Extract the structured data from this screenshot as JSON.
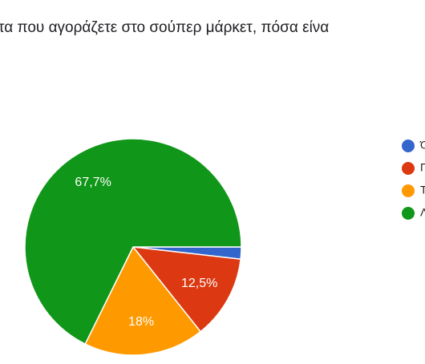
{
  "chart_data": {
    "type": "pie",
    "title": "τα που αγοράζετε στο σούπερ μάρκετ, πόσα είνα",
    "categories": [
      "Ό",
      "Π",
      "Τ",
      "Λ"
    ],
    "values": [
      1.8,
      12.5,
      18,
      67.7
    ],
    "value_labels": [
      null,
      "12,5%",
      "18%",
      "67,7%"
    ],
    "colors": [
      "#3366cc",
      "#dc3912",
      "#ff9900",
      "#109618"
    ]
  }
}
